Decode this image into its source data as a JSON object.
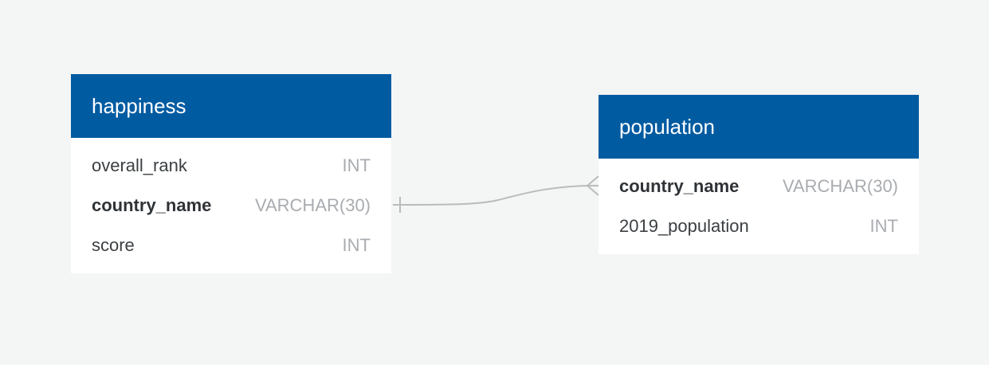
{
  "tables": [
    {
      "name": "happiness",
      "columns": [
        {
          "name": "overall_rank",
          "type": "INT",
          "key": false
        },
        {
          "name": "country_name",
          "type": "VARCHAR(30)",
          "key": true
        },
        {
          "name": "score",
          "type": "INT",
          "key": false
        }
      ]
    },
    {
      "name": "population",
      "columns": [
        {
          "name": "country_name",
          "type": "VARCHAR(30)",
          "key": true
        },
        {
          "name": "2019_population",
          "type": "INT",
          "key": false
        }
      ]
    }
  ],
  "relationships": [
    {
      "from_table": "happiness",
      "from_column": "country_name",
      "from_cardinality": "one",
      "to_table": "population",
      "to_column": "country_name",
      "to_cardinality": "many"
    }
  ],
  "colors": {
    "header_bg": "#005ba1",
    "header_text": "#ffffff",
    "canvas_bg": "#f4f5f5",
    "connector": "#bbbbbb"
  }
}
